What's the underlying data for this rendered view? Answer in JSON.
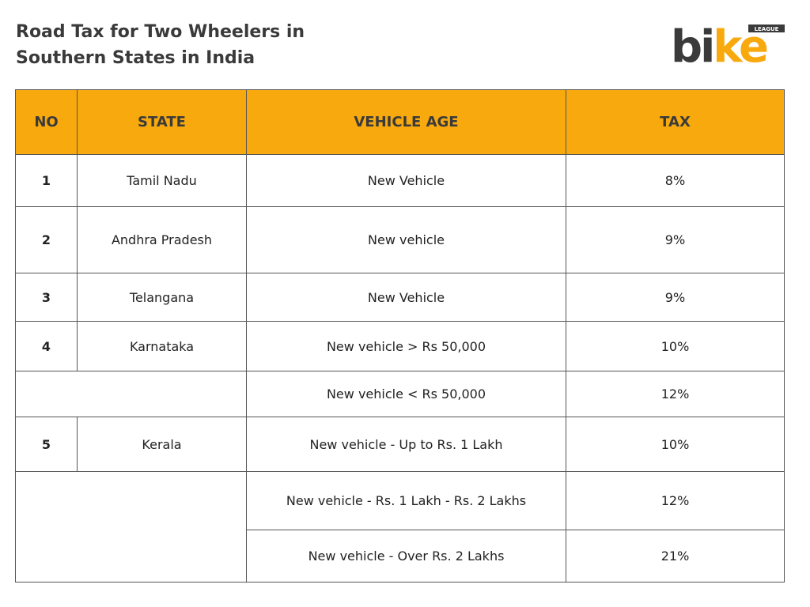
{
  "header": {
    "title_line1": "Road Tax for Two Wheelers in",
    "title_line2": "Southern States in India"
  },
  "logo": {
    "text_main": "bike",
    "text_small": "LEAGUE",
    "colors": {
      "dark": "#3a3a3a",
      "accent": "#f8a90d"
    }
  },
  "table": {
    "headers": [
      "NO",
      "STATE",
      "VEHICLE AGE",
      "TAX"
    ],
    "rows": [
      {
        "no": "1",
        "state": "Tamil Nadu",
        "age": "New Vehicle",
        "tax": "8%"
      },
      {
        "no": "2",
        "state": "Andhra Pradesh",
        "age": "New vehicle",
        "tax": "9%"
      },
      {
        "no": "3",
        "state": "Telangana",
        "age": "New Vehicle",
        "tax": "9%"
      },
      {
        "no": "4",
        "state": "Karnataka",
        "age": "New vehicle > Rs 50,000",
        "tax": "10%"
      },
      {
        "no": "",
        "state": "",
        "age": "New vehicle < Rs 50,000",
        "tax": "12%"
      },
      {
        "no": "5",
        "state": "Kerala",
        "age": "New vehicle - Up to Rs. 1 Lakh",
        "tax": "10%"
      },
      {
        "no": "",
        "state": "",
        "age": "New vehicle - Rs. 1 Lakh - Rs. 2 Lakhs",
        "tax": "12%"
      },
      {
        "no": "",
        "state": "",
        "age": "New vehicle - Over Rs. 2 Lakhs",
        "tax": "21%"
      }
    ]
  }
}
